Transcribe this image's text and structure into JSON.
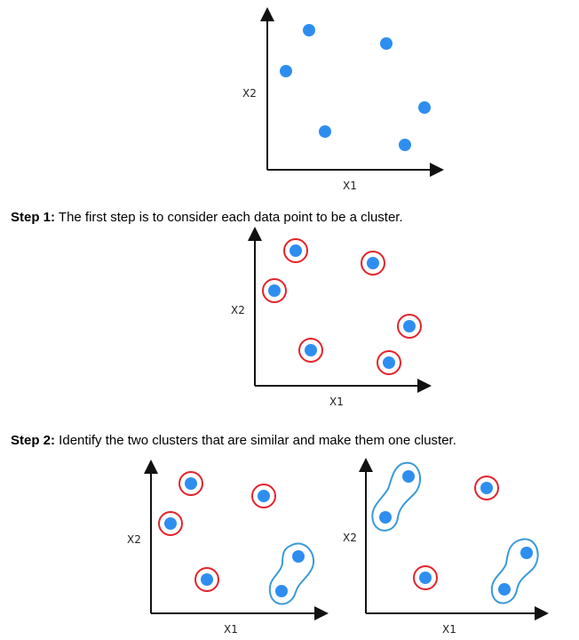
{
  "colors": {
    "point": "#2e8ef0",
    "single_ring": "#e3242b",
    "merged_ring": "#3a9ad9",
    "axis": "#111111"
  },
  "steps": [
    {
      "label": "Step 1:",
      "text": " The first step is to consider each data point to be a cluster."
    },
    {
      "label": "Step 2:",
      "text": " Identify the two clusters that are similar and make them one cluster."
    }
  ],
  "plots": [
    {
      "id": "initial",
      "xlabel": "X1",
      "ylabel": "X2",
      "ring_style": "none",
      "merged_pairs": []
    },
    {
      "id": "step1",
      "xlabel": "X1",
      "ylabel": "X2",
      "ring_style": "single",
      "merged_pairs": []
    },
    {
      "id": "step2a",
      "xlabel": "X1",
      "ylabel": "X2",
      "ring_style": "single",
      "merged_pairs": [
        [
          "E",
          "F"
        ]
      ]
    },
    {
      "id": "step2b",
      "xlabel": "X1",
      "ylabel": "X2",
      "ring_style": "single",
      "merged_pairs": [
        [
          "A",
          "C"
        ],
        [
          "E",
          "F"
        ]
      ]
    }
  ]
}
